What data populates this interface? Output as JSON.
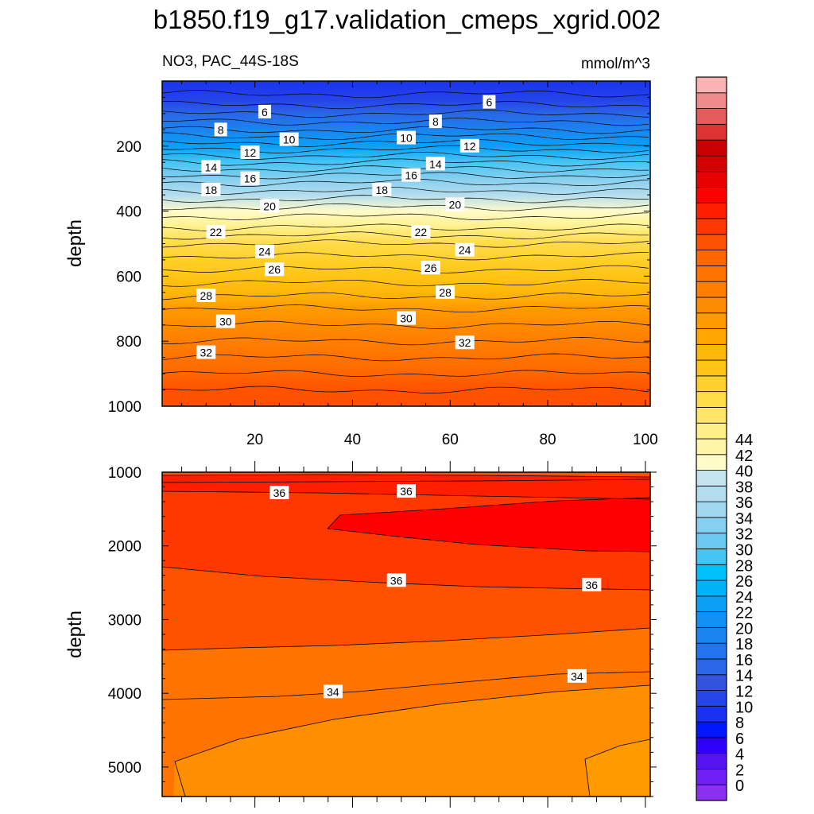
{
  "title": "b1850.f19_g17.validation_cmeps_xgrid.002",
  "subtitle_left": "NO3, PAC_44S-18S",
  "units": "mmol/m^3",
  "chart_data": [
    {
      "type": "heatmap",
      "panel": "upper",
      "ylabel": "depth",
      "xlim": [
        1,
        101
      ],
      "ylim": [
        1000,
        0
      ],
      "x_ticks": [
        "20",
        "40",
        "60",
        "80",
        "100"
      ],
      "y_ticks": [
        "200",
        "400",
        "600",
        "800",
        "1000"
      ],
      "depth_profile": [
        {
          "depth": 0,
          "value": 3
        },
        {
          "depth": 60,
          "value": 4.5
        },
        {
          "depth": 100,
          "value": 6
        },
        {
          "depth": 150,
          "value": 8
        },
        {
          "depth": 200,
          "value": 10.5
        },
        {
          "depth": 250,
          "value": 13
        },
        {
          "depth": 300,
          "value": 15.5
        },
        {
          "depth": 350,
          "value": 17.5
        },
        {
          "depth": 400,
          "value": 19.5
        },
        {
          "depth": 450,
          "value": 21
        },
        {
          "depth": 500,
          "value": 23
        },
        {
          "depth": 550,
          "value": 24.3
        },
        {
          "depth": 600,
          "value": 25.5
        },
        {
          "depth": 650,
          "value": 26.7
        },
        {
          "depth": 700,
          "value": 28
        },
        {
          "depth": 750,
          "value": 29
        },
        {
          "depth": 800,
          "value": 30
        },
        {
          "depth": 850,
          "value": 31
        },
        {
          "depth": 900,
          "value": 32
        },
        {
          "depth": 950,
          "value": 33
        },
        {
          "depth": 1000,
          "value": 33.5
        }
      ],
      "contour_labels": [
        {
          "text": "6",
          "x": 22,
          "depth": 95
        },
        {
          "text": "6",
          "x": 68,
          "depth": 65
        },
        {
          "text": "8",
          "x": 13,
          "depth": 150
        },
        {
          "text": "8",
          "x": 57,
          "depth": 125
        },
        {
          "text": "10",
          "x": 27,
          "depth": 180
        },
        {
          "text": "10",
          "x": 51,
          "depth": 175
        },
        {
          "text": "12",
          "x": 19,
          "depth": 220
        },
        {
          "text": "12",
          "x": 64,
          "depth": 200
        },
        {
          "text": "14",
          "x": 11,
          "depth": 265
        },
        {
          "text": "14",
          "x": 57,
          "depth": 255
        },
        {
          "text": "16",
          "x": 19,
          "depth": 300
        },
        {
          "text": "16",
          "x": 52,
          "depth": 290
        },
        {
          "text": "18",
          "x": 11,
          "depth": 335
        },
        {
          "text": "18",
          "x": 46,
          "depth": 335
        },
        {
          "text": "20",
          "x": 23,
          "depth": 385
        },
        {
          "text": "20",
          "x": 61,
          "depth": 380
        },
        {
          "text": "22",
          "x": 12,
          "depth": 465
        },
        {
          "text": "22",
          "x": 54,
          "depth": 465
        },
        {
          "text": "24",
          "x": 22,
          "depth": 525
        },
        {
          "text": "24",
          "x": 63,
          "depth": 520
        },
        {
          "text": "26",
          "x": 24,
          "depth": 580
        },
        {
          "text": "26",
          "x": 56,
          "depth": 575
        },
        {
          "text": "28",
          "x": 10,
          "depth": 660
        },
        {
          "text": "28",
          "x": 59,
          "depth": 650
        },
        {
          "text": "30",
          "x": 14,
          "depth": 740
        },
        {
          "text": "30",
          "x": 51,
          "depth": 730
        },
        {
          "text": "32",
          "x": 10,
          "depth": 835
        },
        {
          "text": "32",
          "x": 63,
          "depth": 805
        }
      ]
    },
    {
      "type": "heatmap",
      "panel": "lower",
      "ylabel": "depth",
      "xlim": [
        1,
        101
      ],
      "ylim": [
        5400,
        1000
      ],
      "y_ticks": [
        "1000",
        "2000",
        "3000",
        "4000",
        "5000"
      ],
      "contour_labels": [
        {
          "text": "36",
          "x": 25,
          "depth": 1280
        },
        {
          "text": "36",
          "x": 51,
          "depth": 1260
        },
        {
          "text": "36",
          "x": 49,
          "depth": 2470
        },
        {
          "text": "36",
          "x": 89,
          "depth": 2530
        },
        {
          "text": "34",
          "x": 36,
          "depth": 3980
        },
        {
          "text": "34",
          "x": 86,
          "depth": 3770
        }
      ]
    }
  ],
  "colorbar": {
    "labels": [
      "0",
      "2",
      "4",
      "6",
      "8",
      "10",
      "12",
      "14",
      "16",
      "18",
      "20",
      "22",
      "24",
      "26",
      "28",
      "30",
      "32",
      "34",
      "36",
      "38",
      "40",
      "42",
      "44"
    ],
    "colors": [
      "#8b31ee",
      "#6f20f2",
      "#5813f5",
      "#2e00fa",
      "#0016fd",
      "#1a32f0",
      "#2545e8",
      "#3353df",
      "#2a66e6",
      "#2274ec",
      "#1b84f0",
      "#128ff4",
      "#0aa0f6",
      "#00b2f8",
      "#00bff9",
      "#45c5f4",
      "#6ccaf1",
      "#86cff0",
      "#a1d7ef",
      "#b3ddee",
      "#c5e3ee",
      "#fffbc9",
      "#fff5a8",
      "#fff089",
      "#ffe668",
      "#ffdb4a",
      "#ffd02b",
      "#ffc415",
      "#ffb70a",
      "#ffa600",
      "#ff9a00",
      "#ff8b00",
      "#ff7f00",
      "#ff7300",
      "#ff6700",
      "#ff5200",
      "#ff3800",
      "#ff1f00",
      "#ff0000",
      "#e80000",
      "#d60000",
      "#c90000",
      "#dd3333",
      "#e55a5a",
      "#f18a8a",
      "#f9b3b3"
    ]
  }
}
